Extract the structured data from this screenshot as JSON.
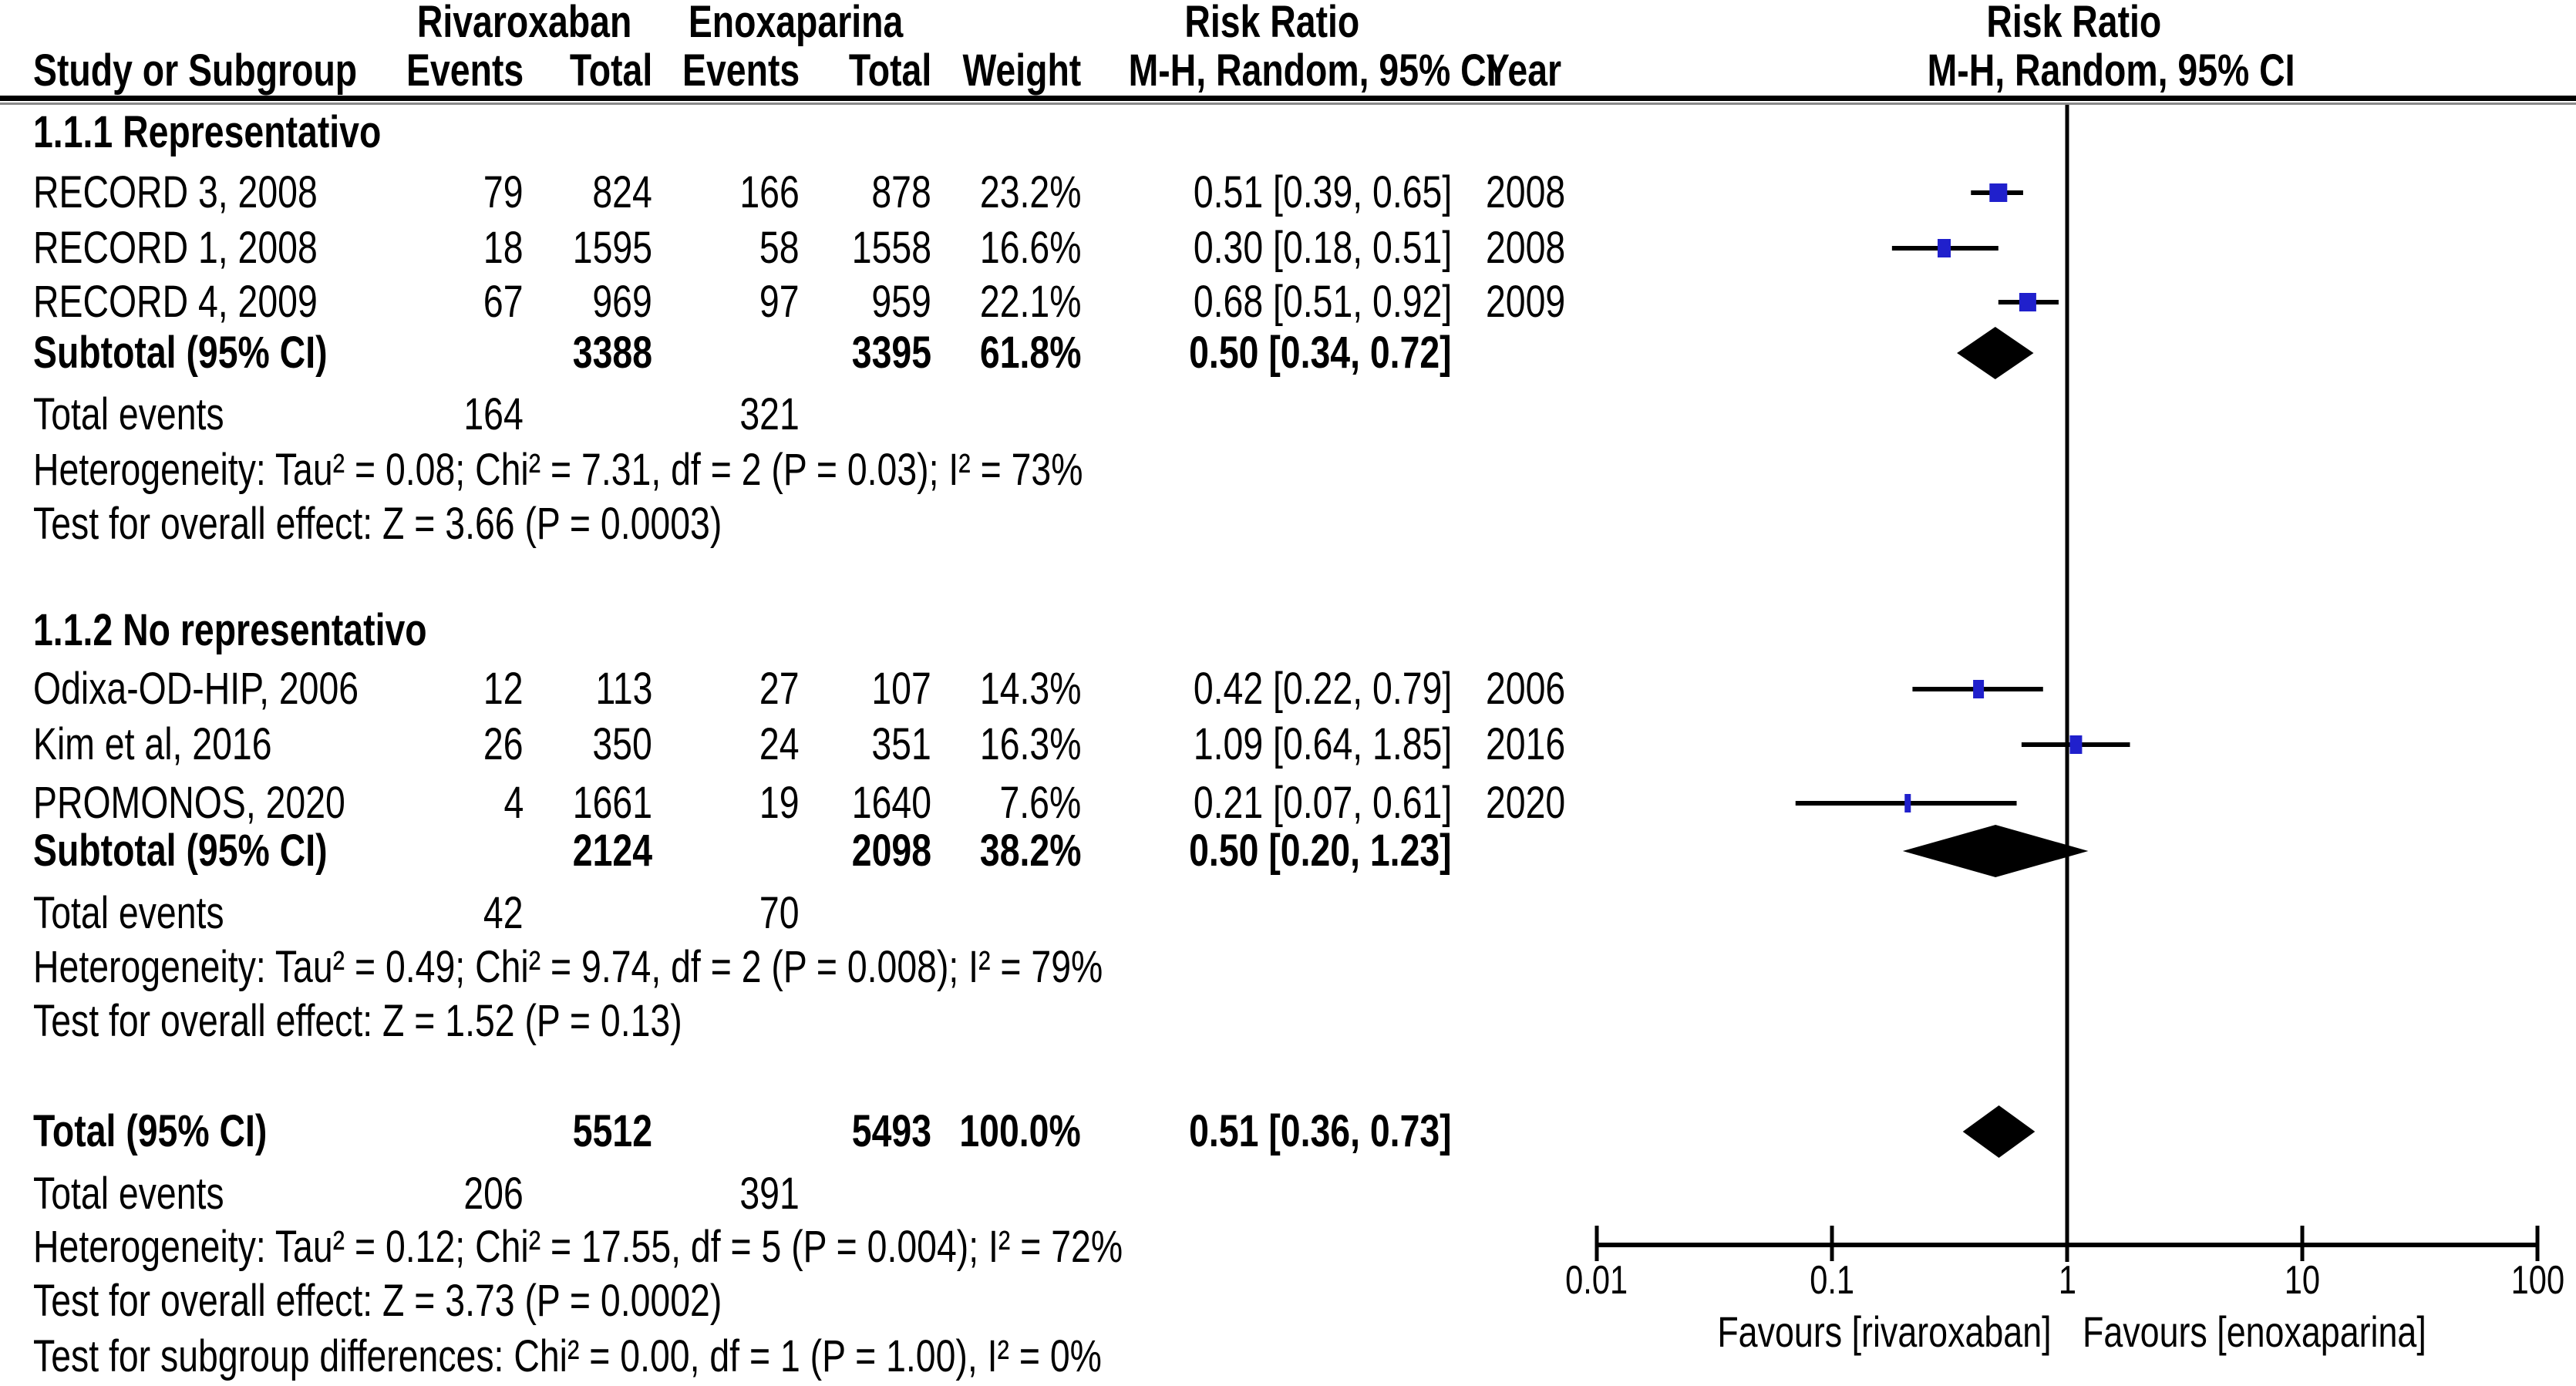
{
  "table": {
    "group_headers": {
      "rivaroxaban": "Rivaroxaban",
      "enoxaparina": "Enoxaparina",
      "risk_ratio_text_col": "Risk Ratio",
      "risk_ratio_plot_col": "Risk Ratio"
    },
    "column_headers": {
      "study": "Study or Subgroup",
      "events_riva": "Events",
      "total_riva": "Total",
      "events_enox": "Events",
      "total_enox": "Total",
      "weight": "Weight",
      "method_ci": "M-H, Random, 95% CI",
      "year": "Year",
      "method_ci_plot": "M-H, Random, 95% CI"
    }
  },
  "chart_data": {
    "type": "forest",
    "effect_measure": "Risk Ratio",
    "method": "M-H, Random, 95% CI",
    "x_axis": {
      "scale": "log10",
      "ticks": [
        "0.01",
        "0.1",
        "1",
        "10",
        "100"
      ],
      "range": [
        0.01,
        100
      ],
      "favours_left": "Favours [rivaroxaban]",
      "favours_right": "Favours [enoxaparina]"
    },
    "groups": [
      {
        "title": "1.1.1 Representativo",
        "studies": [
          {
            "name": "RECORD 3, 2008",
            "events1": "79",
            "total1": "824",
            "events2": "166",
            "total2": "878",
            "weight": "23.2%",
            "rr": 0.51,
            "ci_low": 0.39,
            "ci_high": 0.65,
            "ci_text": "0.51 [0.39, 0.65]",
            "year": "2008"
          },
          {
            "name": "RECORD 1, 2008",
            "events1": "18",
            "total1": "1595",
            "events2": "58",
            "total2": "1558",
            "weight": "16.6%",
            "rr": 0.3,
            "ci_low": 0.18,
            "ci_high": 0.51,
            "ci_text": "0.30 [0.18, 0.51]",
            "year": "2008"
          },
          {
            "name": "RECORD 4, 2009",
            "events1": "67",
            "total1": "969",
            "events2": "97",
            "total2": "959",
            "weight": "22.1%",
            "rr": 0.68,
            "ci_low": 0.51,
            "ci_high": 0.92,
            "ci_text": "0.68 [0.51, 0.92]",
            "year": "2009"
          }
        ],
        "subtotal": {
          "label": "Subtotal (95% CI)",
          "total1": "3388",
          "total2": "3395",
          "weight": "61.8%",
          "rr": 0.5,
          "ci_low": 0.34,
          "ci_high": 0.72,
          "ci_text": "0.50 [0.34, 0.72]"
        },
        "total_events": {
          "label": "Total events",
          "events1": "164",
          "events2": "321"
        },
        "heterogeneity": "Heterogeneity: Tau² = 0.08; Chi² = 7.31, df = 2 (P = 0.03); I² = 73%",
        "overall_effect": "Test for overall effect: Z = 3.66 (P = 0.0003)"
      },
      {
        "title": "1.1.2 No representativo",
        "studies": [
          {
            "name": "Odixa-OD-HIP, 2006",
            "events1": "12",
            "total1": "113",
            "events2": "27",
            "total2": "107",
            "weight": "14.3%",
            "rr": 0.42,
            "ci_low": 0.22,
            "ci_high": 0.79,
            "ci_text": "0.42 [0.22, 0.79]",
            "year": "2006"
          },
          {
            "name": "Kim et al, 2016",
            "events1": "26",
            "total1": "350",
            "events2": "24",
            "total2": "351",
            "weight": "16.3%",
            "rr": 1.09,
            "ci_low": 0.64,
            "ci_high": 1.85,
            "ci_text": "1.09 [0.64, 1.85]",
            "year": "2016"
          },
          {
            "name": "PROMONOS, 2020",
            "events1": "4",
            "total1": "1661",
            "events2": "19",
            "total2": "1640",
            "weight": "7.6%",
            "rr": 0.21,
            "ci_low": 0.07,
            "ci_high": 0.61,
            "ci_text": "0.21 [0.07, 0.61]",
            "year": "2020"
          }
        ],
        "subtotal": {
          "label": "Subtotal (95% CI)",
          "total1": "2124",
          "total2": "2098",
          "weight": "38.2%",
          "rr": 0.5,
          "ci_low": 0.2,
          "ci_high": 1.23,
          "ci_text": "0.50 [0.20, 1.23]"
        },
        "total_events": {
          "label": "Total events",
          "events1": "42",
          "events2": "70"
        },
        "heterogeneity": "Heterogeneity: Tau² = 0.49; Chi² = 9.74, df = 2 (P = 0.008); I² = 79%",
        "overall_effect": "Test for overall effect: Z = 1.52 (P = 0.13)"
      }
    ],
    "overall": {
      "total_row": {
        "label": "Total (95% CI)",
        "total1": "5512",
        "total2": "5493",
        "weight": "100.0%",
        "rr": 0.51,
        "ci_low": 0.36,
        "ci_high": 0.73,
        "ci_text": "0.51 [0.36, 0.73]"
      },
      "total_events": {
        "label": "Total events",
        "events1": "206",
        "events2": "391"
      },
      "heterogeneity": "Heterogeneity: Tau² = 0.12; Chi² = 17.55, df = 5 (P = 0.004); I² = 72%",
      "overall_effect": "Test for overall effect: Z = 3.73 (P = 0.0002)",
      "subgroup_differences": "Test for subgroup differences: Chi² = 0.00, df = 1 (P = 1.00), I² = 0%"
    },
    "colors": {
      "square": "#2020CC",
      "diamond": "#000000",
      "ci_line": "#000000",
      "axis": "#000000"
    }
  }
}
